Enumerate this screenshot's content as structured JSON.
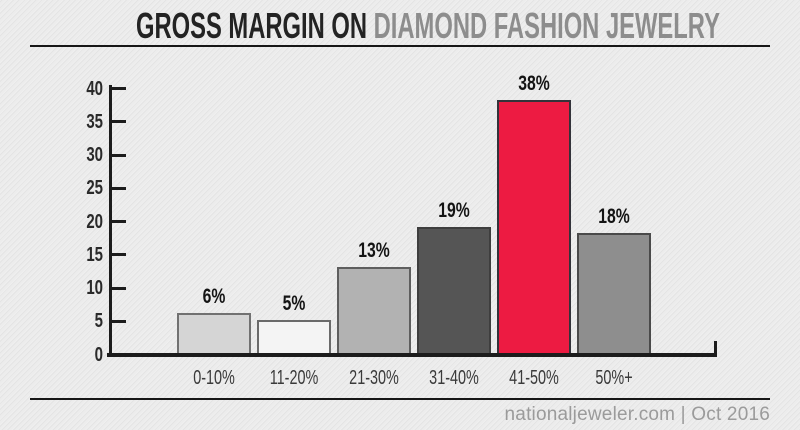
{
  "header": {
    "title_dark": "GROSS MARGIN ON ",
    "title_accent": "DIAMOND FASHION JEWELRY"
  },
  "footer": {
    "source": "nationaljeweler.com | Oct 2016"
  },
  "colors": {
    "background": "#e9e9e9",
    "axis": "#1c1c1c",
    "title_dark": "#232323",
    "title_accent": "#8d8d8d",
    "accent_red": "#ed1b42",
    "footer_text": "#9b9b9b"
  },
  "chart_data": {
    "type": "bar",
    "title": "GROSS MARGIN ON DIAMOND FASHION JEWELRY",
    "xlabel": "",
    "ylabel": "",
    "categories": [
      "0-10%",
      "11-20%",
      "21-30%",
      "31-40%",
      "41-50%",
      "50%+"
    ],
    "values": [
      6,
      5,
      13,
      19,
      38,
      18
    ],
    "value_labels": [
      "6%",
      "5%",
      "13%",
      "19%",
      "38%",
      "18%"
    ],
    "y_ticks": [
      0,
      5,
      10,
      15,
      20,
      25,
      30,
      35,
      40
    ],
    "ylim": [
      0,
      40
    ],
    "grid": false,
    "legend": false,
    "bar_fills": [
      "#d5d5d5",
      "#f4f4f4",
      "#b2b2b2",
      "#555555",
      "#ed1b42",
      "#8e8e8e"
    ],
    "bar_borders": [
      "#717171",
      "#6a6a6a",
      "#5e5e5e",
      "#3e3e3e",
      "#33333a",
      "#4a4a4a"
    ],
    "source": "nationaljeweler.com | Oct 2016"
  }
}
